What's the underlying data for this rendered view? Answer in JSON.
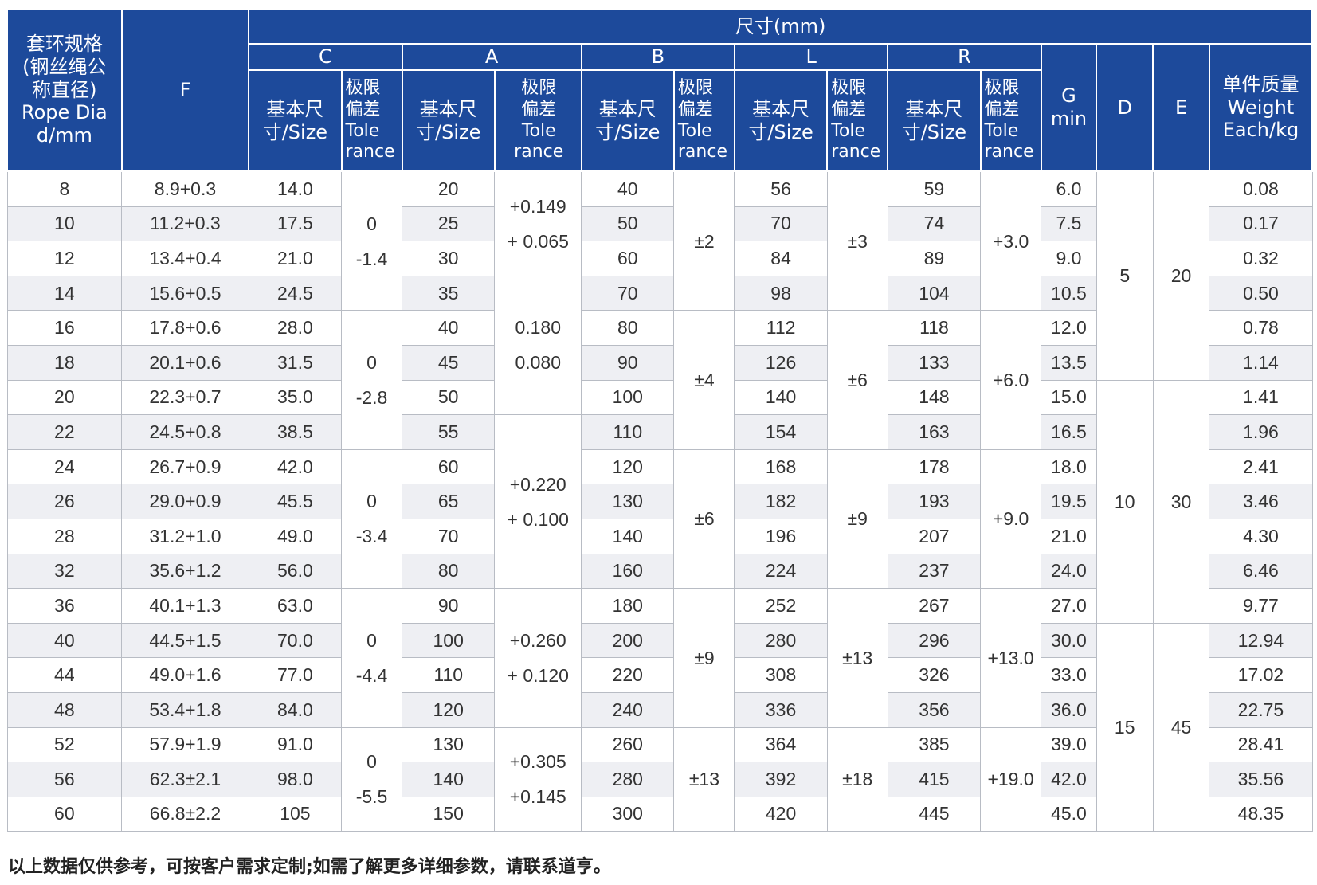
{
  "header": {
    "group_title": "尺寸(mm)",
    "rope_dia": [
      "套环规格",
      "(钢丝绳公",
      "称直径)",
      "Rope Dia",
      "d/mm"
    ],
    "F": "F",
    "C": "C",
    "A": "A",
    "B": "B",
    "L": "L",
    "R": "R",
    "size": [
      "基本尺",
      "寸/Size"
    ],
    "tol": [
      "极限",
      "偏差",
      "Tole",
      "rance"
    ],
    "G": [
      "G",
      "min"
    ],
    "D": "D",
    "E": "E",
    "weight": [
      "单件质量",
      "Weight",
      "Each/kg"
    ]
  },
  "rows": [
    {
      "d": "8",
      "F": "8.9+0.3",
      "C": "14.0",
      "A": "20",
      "B": "40",
      "L": "56",
      "R": "59",
      "G": "6.0",
      "W": "0.08"
    },
    {
      "d": "10",
      "F": "11.2+0.3",
      "C": "17.5",
      "A": "25",
      "B": "50",
      "L": "70",
      "R": "74",
      "G": "7.5",
      "W": "0.17"
    },
    {
      "d": "12",
      "F": "13.4+0.4",
      "C": "21.0",
      "A": "30",
      "B": "60",
      "L": "84",
      "R": "89",
      "G": "9.0",
      "W": "0.32"
    },
    {
      "d": "14",
      "F": "15.6+0.5",
      "C": "24.5",
      "A": "35",
      "B": "70",
      "L": "98",
      "R": "104",
      "G": "10.5",
      "W": "0.50"
    },
    {
      "d": "16",
      "F": "17.8+0.6",
      "C": "28.0",
      "A": "40",
      "B": "80",
      "L": "112",
      "R": "118",
      "G": "12.0",
      "W": "0.78"
    },
    {
      "d": "18",
      "F": "20.1+0.6",
      "C": "31.5",
      "A": "45",
      "B": "90",
      "L": "126",
      "R": "133",
      "G": "13.5",
      "W": "1.14"
    },
    {
      "d": "20",
      "F": "22.3+0.7",
      "C": "35.0",
      "A": "50",
      "B": "100",
      "L": "140",
      "R": "148",
      "G": "15.0",
      "W": "1.41"
    },
    {
      "d": "22",
      "F": "24.5+0.8",
      "C": "38.5",
      "A": "55",
      "B": "110",
      "L": "154",
      "R": "163",
      "G": "16.5",
      "W": "1.96"
    },
    {
      "d": "24",
      "F": "26.7+0.9",
      "C": "42.0",
      "A": "60",
      "B": "120",
      "L": "168",
      "R": "178",
      "G": "18.0",
      "W": "2.41"
    },
    {
      "d": "26",
      "F": "29.0+0.9",
      "C": "45.5",
      "A": "65",
      "B": "130",
      "L": "182",
      "R": "193",
      "G": "19.5",
      "W": "3.46"
    },
    {
      "d": "28",
      "F": "31.2+1.0",
      "C": "49.0",
      "A": "70",
      "B": "140",
      "L": "196",
      "R": "207",
      "G": "21.0",
      "W": "4.30"
    },
    {
      "d": "32",
      "F": "35.6+1.2",
      "C": "56.0",
      "A": "80",
      "B": "160",
      "L": "224",
      "R": "237",
      "G": "24.0",
      "W": "6.46"
    },
    {
      "d": "36",
      "F": "40.1+1.3",
      "C": "63.0",
      "A": "90",
      "B": "180",
      "L": "252",
      "R": "267",
      "G": "27.0",
      "W": "9.77"
    },
    {
      "d": "40",
      "F": "44.5+1.5",
      "C": "70.0",
      "A": "100",
      "B": "200",
      "L": "280",
      "R": "296",
      "G": "30.0",
      "W": "12.94"
    },
    {
      "d": "44",
      "F": "49.0+1.6",
      "C": "77.0",
      "A": "110",
      "B": "220",
      "L": "308",
      "R": "326",
      "G": "33.0",
      "W": "17.02"
    },
    {
      "d": "48",
      "F": "53.4+1.8",
      "C": "84.0",
      "A": "120",
      "B": "240",
      "L": "336",
      "R": "356",
      "G": "36.0",
      "W": "22.75"
    },
    {
      "d": "52",
      "F": "57.9+1.9",
      "C": "91.0",
      "A": "130",
      "B": "260",
      "L": "364",
      "R": "385",
      "G": "39.0",
      "W": "28.41"
    },
    {
      "d": "56",
      "F": "62.3±2.1",
      "C": "98.0",
      "A": "140",
      "B": "280",
      "L": "392",
      "R": "415",
      "G": "42.0",
      "W": "35.56"
    },
    {
      "d": "60",
      "F": "66.8±2.2",
      "C": "105",
      "A": "150",
      "B": "300",
      "L": "420",
      "R": "445",
      "G": "45.0",
      "W": "48.35"
    }
  ],
  "merged": {
    "C_tol": [
      {
        "start": 0,
        "span": 4,
        "lines": [
          "0",
          "-1.4"
        ]
      },
      {
        "start": 4,
        "span": 4,
        "lines": [
          "0",
          "-2.8"
        ]
      },
      {
        "start": 8,
        "span": 4,
        "lines": [
          "0",
          "-3.4"
        ]
      },
      {
        "start": 12,
        "span": 4,
        "lines": [
          "0",
          "-4.4"
        ]
      },
      {
        "start": 16,
        "span": 3,
        "lines": [
          "0",
          "-5.5"
        ]
      }
    ],
    "A_tol": [
      {
        "start": 0,
        "span": 3,
        "lines": [
          "+0.149",
          "+ 0.065"
        ]
      },
      {
        "start": 3,
        "span": 4,
        "lines": [
          "0.180",
          "0.080"
        ]
      },
      {
        "start": 7,
        "span": 5,
        "lines": [
          "+0.220",
          "+ 0.100"
        ]
      },
      {
        "start": 12,
        "span": 4,
        "lines": [
          "+0.260",
          "+ 0.120"
        ]
      },
      {
        "start": 16,
        "span": 3,
        "lines": [
          "+0.305",
          "+0.145"
        ]
      }
    ],
    "B_tol": [
      {
        "start": 0,
        "span": 4,
        "lines": [
          "±2"
        ]
      },
      {
        "start": 4,
        "span": 4,
        "lines": [
          "±4"
        ]
      },
      {
        "start": 8,
        "span": 4,
        "lines": [
          "±6"
        ]
      },
      {
        "start": 12,
        "span": 4,
        "lines": [
          "±9"
        ]
      },
      {
        "start": 16,
        "span": 3,
        "lines": [
          "±13"
        ]
      }
    ],
    "L_tol": [
      {
        "start": 0,
        "span": 4,
        "lines": [
          "±3"
        ]
      },
      {
        "start": 4,
        "span": 4,
        "lines": [
          "±6"
        ]
      },
      {
        "start": 8,
        "span": 4,
        "lines": [
          "±9"
        ]
      },
      {
        "start": 12,
        "span": 4,
        "lines": [
          "±13"
        ]
      },
      {
        "start": 16,
        "span": 3,
        "lines": [
          "±18"
        ]
      }
    ],
    "R_tol": [
      {
        "start": 0,
        "span": 4,
        "lines": [
          "+3.0"
        ]
      },
      {
        "start": 4,
        "span": 4,
        "lines": [
          "+6.0"
        ]
      },
      {
        "start": 8,
        "span": 4,
        "lines": [
          "+9.0"
        ]
      },
      {
        "start": 12,
        "span": 4,
        "lines": [
          "+13.0"
        ]
      },
      {
        "start": 16,
        "span": 3,
        "lines": [
          "+19.0"
        ]
      }
    ],
    "D": [
      {
        "start": 0,
        "span": 6,
        "lines": [
          "5"
        ]
      },
      {
        "start": 6,
        "span": 7,
        "lines": [
          "10"
        ]
      },
      {
        "start": 13,
        "span": 6,
        "lines": [
          "15"
        ]
      }
    ],
    "E": [
      {
        "start": 0,
        "span": 6,
        "lines": [
          "20"
        ]
      },
      {
        "start": 6,
        "span": 7,
        "lines": [
          "30"
        ]
      },
      {
        "start": 13,
        "span": 6,
        "lines": [
          "45"
        ]
      }
    ]
  },
  "footer_note": "以上数据仅供参考，可按客户需求定制;如需了解更多详细参数，请联系道亨。"
}
